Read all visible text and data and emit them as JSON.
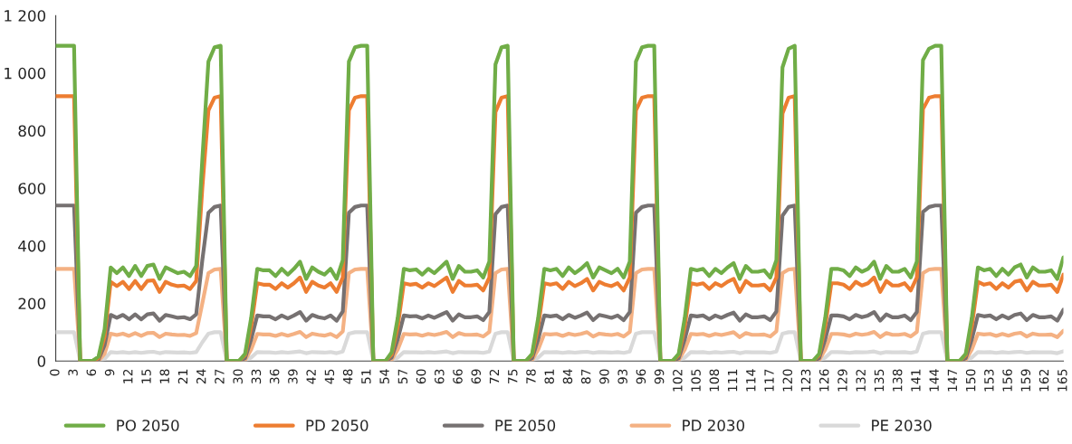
{
  "chart_data": {
    "type": "line",
    "x": [
      0,
      1,
      2,
      3,
      4,
      5,
      6,
      7,
      8,
      9,
      10,
      11,
      12,
      13,
      14,
      15,
      16,
      17,
      18,
      19,
      20,
      21,
      22,
      23,
      24,
      25,
      26,
      27,
      28,
      29,
      30,
      31,
      32,
      33,
      34,
      35,
      36,
      37,
      38,
      39,
      40,
      41,
      42,
      43,
      44,
      45,
      46,
      47,
      48,
      49,
      50,
      51,
      52,
      53,
      54,
      55,
      56,
      57,
      58,
      59,
      60,
      61,
      62,
      63,
      64,
      65,
      66,
      67,
      68,
      69,
      70,
      71,
      72,
      73,
      74,
      75,
      76,
      77,
      78,
      79,
      80,
      81,
      82,
      83,
      84,
      85,
      86,
      87,
      88,
      89,
      90,
      91,
      92,
      93,
      94,
      95,
      96,
      97,
      98,
      99,
      100,
      101,
      102,
      103,
      104,
      105,
      106,
      107,
      108,
      109,
      110,
      111,
      112,
      113,
      114,
      115,
      116,
      117,
      118,
      119,
      120,
      121,
      122,
      123,
      124,
      125,
      126,
      127,
      128,
      129,
      130,
      131,
      132,
      133,
      134,
      135,
      136,
      137,
      138,
      139,
      140,
      141,
      142,
      143,
      144,
      145,
      146,
      147,
      148,
      149,
      150,
      151,
      152,
      153,
      154,
      155,
      156,
      157,
      158,
      159,
      160,
      161,
      162,
      163,
      164,
      165
    ],
    "series": [
      {
        "name": "PO 2050",
        "color": "#70ad47",
        "values": [
          1095,
          1095,
          1095,
          1095,
          0,
          0,
          0,
          15,
          110,
          325,
          305,
          325,
          295,
          330,
          295,
          330,
          335,
          285,
          325,
          315,
          305,
          310,
          295,
          330,
          700,
          1040,
          1090,
          1095,
          0,
          0,
          0,
          25,
          150,
          320,
          315,
          315,
          295,
          320,
          300,
          320,
          345,
          285,
          325,
          310,
          300,
          320,
          285,
          350,
          1040,
          1090,
          1095,
          1095,
          0,
          0,
          0,
          30,
          150,
          320,
          315,
          318,
          300,
          320,
          305,
          325,
          345,
          285,
          330,
          310,
          310,
          315,
          290,
          345,
          1030,
          1090,
          1095,
          0,
          0,
          0,
          25,
          150,
          320,
          315,
          320,
          295,
          325,
          305,
          320,
          340,
          290,
          325,
          315,
          305,
          320,
          290,
          345,
          1040,
          1090,
          1095,
          1095,
          0,
          0,
          0,
          25,
          150,
          320,
          315,
          320,
          295,
          320,
          305,
          325,
          340,
          285,
          330,
          310,
          310,
          315,
          290,
          350,
          1020,
          1085,
          1095,
          0,
          0,
          0,
          25,
          150,
          320,
          320,
          315,
          295,
          325,
          310,
          320,
          345,
          285,
          330,
          310,
          310,
          320,
          290,
          345,
          1045,
          1085,
          1095,
          1095,
          0,
          0,
          0,
          25,
          150,
          325,
          315,
          320,
          295,
          320,
          300,
          325,
          335,
          290,
          325,
          310,
          310,
          315,
          285,
          360
        ]
      },
      {
        "name": "PD 2050",
        "color": "#ed7d31",
        "values": [
          920,
          920,
          920,
          920,
          0,
          0,
          0,
          10,
          85,
          275,
          260,
          275,
          250,
          278,
          250,
          278,
          280,
          240,
          275,
          265,
          260,
          262,
          250,
          278,
          600,
          870,
          915,
          920,
          0,
          0,
          0,
          20,
          120,
          270,
          265,
          265,
          250,
          270,
          255,
          270,
          290,
          240,
          275,
          262,
          255,
          270,
          240,
          290,
          870,
          915,
          920,
          920,
          0,
          0,
          0,
          22,
          120,
          270,
          265,
          268,
          255,
          270,
          260,
          275,
          290,
          240,
          278,
          262,
          262,
          265,
          245,
          290,
          865,
          915,
          920,
          0,
          0,
          0,
          20,
          120,
          270,
          265,
          270,
          250,
          275,
          260,
          270,
          285,
          245,
          275,
          265,
          260,
          270,
          245,
          290,
          870,
          915,
          920,
          920,
          0,
          0,
          0,
          20,
          120,
          270,
          265,
          270,
          250,
          270,
          260,
          275,
          285,
          240,
          278,
          262,
          262,
          265,
          245,
          290,
          860,
          915,
          920,
          0,
          0,
          0,
          20,
          120,
          270,
          270,
          265,
          250,
          275,
          262,
          270,
          290,
          240,
          278,
          262,
          262,
          270,
          245,
          290,
          875,
          915,
          920,
          920,
          0,
          0,
          0,
          20,
          120,
          275,
          265,
          270,
          250,
          270,
          255,
          275,
          280,
          245,
          275,
          262,
          262,
          265,
          240,
          300
        ]
      },
      {
        "name": "PE 2050",
        "color": "#767171",
        "values": [
          540,
          540,
          540,
          540,
          0,
          0,
          0,
          5,
          55,
          160,
          150,
          160,
          145,
          162,
          145,
          162,
          165,
          140,
          160,
          155,
          150,
          152,
          145,
          162,
          350,
          515,
          535,
          540,
          0,
          0,
          0,
          10,
          75,
          158,
          155,
          155,
          145,
          158,
          148,
          158,
          170,
          140,
          160,
          152,
          148,
          158,
          140,
          172,
          515,
          535,
          540,
          540,
          0,
          0,
          0,
          12,
          75,
          158,
          155,
          156,
          148,
          158,
          150,
          160,
          170,
          140,
          162,
          152,
          152,
          155,
          142,
          170,
          510,
          535,
          540,
          0,
          0,
          0,
          10,
          75,
          158,
          155,
          158,
          145,
          160,
          150,
          158,
          168,
          142,
          160,
          155,
          150,
          158,
          142,
          170,
          515,
          535,
          540,
          540,
          0,
          0,
          0,
          10,
          75,
          158,
          155,
          158,
          145,
          158,
          150,
          160,
          168,
          140,
          162,
          152,
          152,
          155,
          142,
          172,
          505,
          535,
          540,
          0,
          0,
          0,
          10,
          75,
          158,
          158,
          155,
          145,
          160,
          152,
          158,
          170,
          140,
          162,
          152,
          152,
          158,
          142,
          170,
          518,
          535,
          540,
          540,
          0,
          0,
          0,
          10,
          75,
          160,
          155,
          158,
          145,
          158,
          148,
          160,
          165,
          142,
          160,
          152,
          152,
          155,
          140,
          178
        ]
      },
      {
        "name": "PD 2030",
        "color": "#f4b183",
        "values": [
          320,
          320,
          320,
          320,
          0,
          0,
          0,
          0,
          25,
          95,
          90,
          95,
          87,
          97,
          87,
          97,
          98,
          83,
          95,
          92,
          90,
          91,
          87,
          97,
          200,
          305,
          318,
          320,
          0,
          0,
          0,
          3,
          40,
          94,
          92,
          92,
          87,
          94,
          88,
          94,
          101,
          83,
          95,
          91,
          88,
          94,
          83,
          103,
          305,
          318,
          320,
          320,
          0,
          0,
          0,
          4,
          40,
          94,
          92,
          93,
          88,
          94,
          90,
          95,
          101,
          83,
          97,
          91,
          91,
          92,
          85,
          101,
          305,
          318,
          320,
          0,
          0,
          0,
          3,
          40,
          94,
          92,
          94,
          87,
          95,
          90,
          94,
          100,
          85,
          95,
          92,
          90,
          94,
          85,
          101,
          305,
          318,
          320,
          320,
          0,
          0,
          0,
          3,
          40,
          94,
          92,
          94,
          87,
          94,
          90,
          95,
          100,
          83,
          97,
          91,
          91,
          92,
          85,
          103,
          305,
          318,
          320,
          0,
          0,
          0,
          3,
          40,
          94,
          94,
          92,
          87,
          95,
          91,
          94,
          101,
          83,
          97,
          91,
          91,
          94,
          85,
          101,
          305,
          318,
          320,
          320,
          0,
          0,
          0,
          3,
          40,
          95,
          92,
          94,
          87,
          94,
          88,
          95,
          98,
          85,
          95,
          91,
          91,
          92,
          83,
          105
        ]
      },
      {
        "name": "PE 2030",
        "color": "#d9d9d9",
        "values": [
          100,
          100,
          100,
          100,
          0,
          0,
          0,
          0,
          7,
          31,
          29,
          31,
          28,
          31,
          28,
          31,
          32,
          27,
          31,
          30,
          29,
          30,
          28,
          31,
          65,
          95,
          100,
          100,
          0,
          0,
          0,
          1,
          12,
          31,
          30,
          30,
          28,
          31,
          29,
          31,
          33,
          27,
          31,
          30,
          29,
          31,
          27,
          33,
          95,
          100,
          100,
          100,
          0,
          0,
          0,
          1,
          12,
          31,
          30,
          30,
          29,
          31,
          29,
          31,
          33,
          27,
          31,
          30,
          30,
          30,
          28,
          33,
          95,
          100,
          100,
          0,
          0,
          0,
          1,
          12,
          31,
          30,
          31,
          28,
          31,
          29,
          31,
          32,
          28,
          31,
          30,
          29,
          31,
          28,
          33,
          95,
          100,
          100,
          100,
          0,
          0,
          0,
          1,
          12,
          31,
          30,
          31,
          28,
          31,
          29,
          31,
          32,
          27,
          31,
          30,
          30,
          30,
          28,
          33,
          95,
          100,
          100,
          0,
          0,
          0,
          1,
          12,
          31,
          31,
          30,
          28,
          31,
          30,
          31,
          33,
          27,
          31,
          30,
          30,
          31,
          28,
          33,
          95,
          100,
          100,
          100,
          0,
          0,
          0,
          1,
          12,
          31,
          30,
          31,
          28,
          31,
          29,
          31,
          32,
          28,
          31,
          30,
          30,
          30,
          27,
          34
        ]
      }
    ],
    "xlim": [
      0,
      165
    ],
    "xticks": [
      0,
      3,
      6,
      9,
      12,
      15,
      18,
      21,
      24,
      27,
      30,
      33,
      36,
      39,
      42,
      45,
      48,
      51,
      54,
      57,
      60,
      63,
      66,
      69,
      72,
      75,
      78,
      81,
      84,
      87,
      90,
      93,
      96,
      99,
      102,
      105,
      108,
      111,
      114,
      117,
      120,
      123,
      126,
      129,
      132,
      135,
      138,
      141,
      144,
      147,
      150,
      153,
      156,
      159,
      162,
      165
    ],
    "ylim": [
      0,
      1200
    ],
    "yticks": [
      0,
      200,
      400,
      600,
      800,
      {
        "value": 1000,
        "label": "1 000"
      },
      {
        "value": 1200,
        "label": "1 200"
      }
    ],
    "grid": false,
    "legend": "bottom",
    "marker": "none",
    "line_style": "solid"
  }
}
